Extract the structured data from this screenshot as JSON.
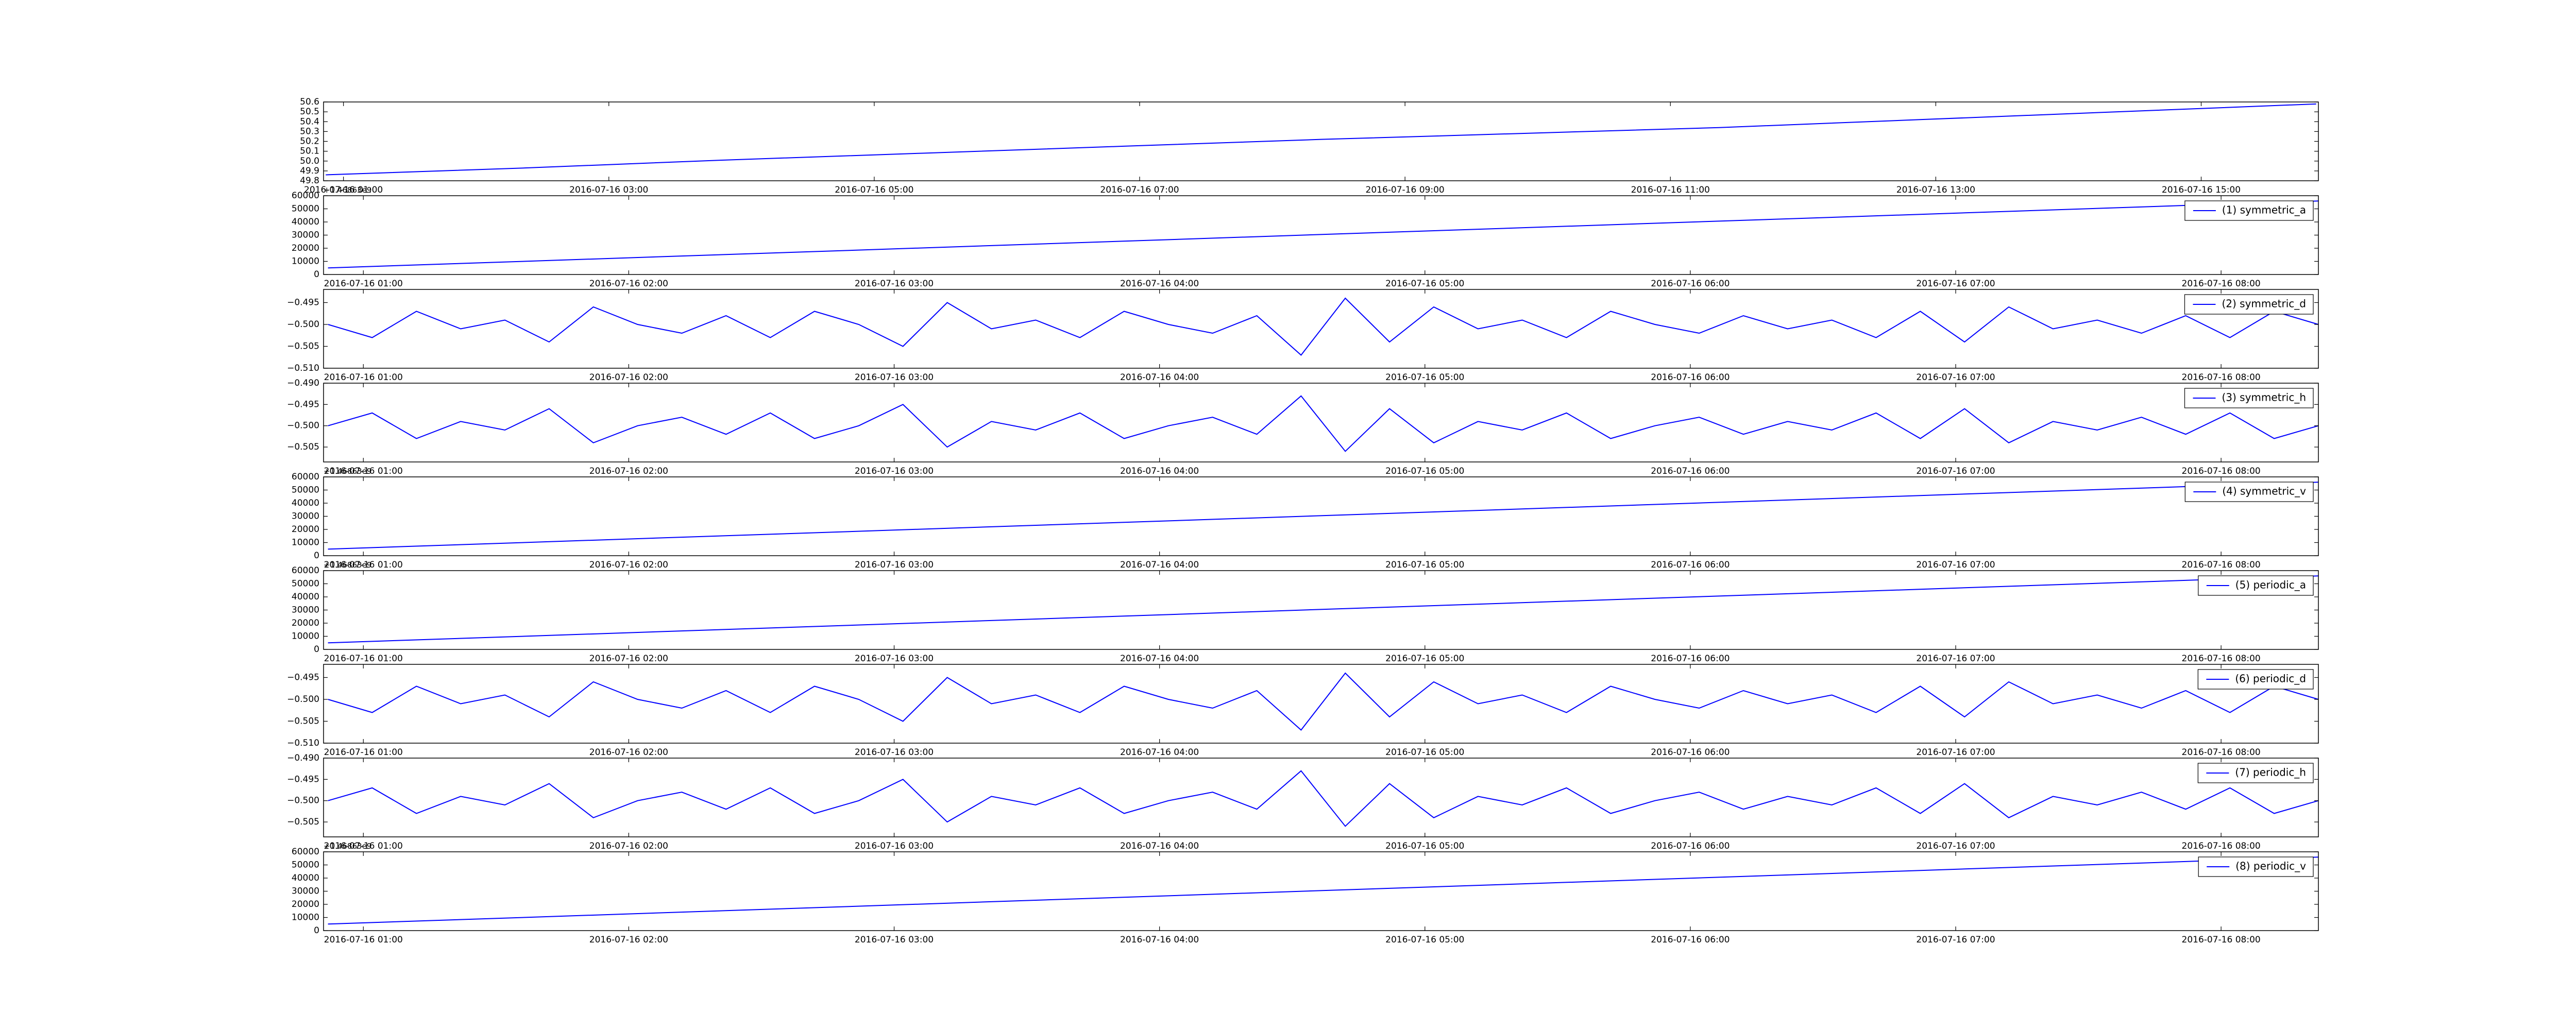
{
  "chart_data": [
    {
      "type": "line",
      "color": "#0000ff",
      "x": [
        "2016-07-16 00:52",
        "2016-07-16 02:22",
        "2016-07-16 03:52",
        "2016-07-16 05:22",
        "2016-07-16 06:52",
        "2016-07-16 08:22",
        "2016-07-16 09:52",
        "2016-07-16 11:22",
        "2016-07-16 12:52",
        "2016-07-16 14:22",
        "2016-07-16 15:52"
      ],
      "values": [
        49.86,
        49.93,
        50.01,
        50.08,
        50.15,
        50.22,
        50.28,
        50.34,
        50.42,
        50.5,
        50.58
      ],
      "xlim": [
        "2016-07-16 00:51",
        "2016-07-16 15:53"
      ],
      "xticks": [
        "2016-07-16 01:00",
        "2016-07-16 03:00",
        "2016-07-16 05:00",
        "2016-07-16 07:00",
        "2016-07-16 09:00",
        "2016-07-16 11:00",
        "2016-07-16 13:00",
        "2016-07-16 15:00"
      ],
      "ylim": [
        49.8,
        50.6
      ],
      "yticks": [
        49.8,
        49.9,
        {
          "value": 50,
          "label": "50.0"
        },
        50.1,
        50.2,
        50.3,
        50.4,
        50.5,
        50.6
      ]
    },
    {
      "type": "line",
      "offset_text": "+1.46863e9",
      "legend": "upper right",
      "x": [
        "2016-07-16 00:52",
        "2016-07-16 08:22"
      ],
      "series": [
        {
          "name": "(1) symmetric_a",
          "color": "#0000ff",
          "values": [
            5000,
            56000
          ]
        }
      ],
      "xlim": [
        "2016-07-16 00:51",
        "2016-07-16 08:22"
      ],
      "xticks": [
        "2016-07-16 01:00",
        "2016-07-16 02:00",
        "2016-07-16 03:00",
        "2016-07-16 04:00",
        "2016-07-16 05:00",
        "2016-07-16 06:00",
        "2016-07-16 07:00",
        "2016-07-16 08:00"
      ],
      "ylim": [
        0,
        60000
      ],
      "yticks": [
        0,
        10000,
        20000,
        30000,
        40000,
        50000,
        60000
      ]
    },
    {
      "type": "line",
      "legend": "upper right",
      "x": [
        "2016-07-16 00:52",
        "2016-07-16 01:02",
        "2016-07-16 01:12",
        "2016-07-16 01:22",
        "2016-07-16 01:32",
        "2016-07-16 01:42",
        "2016-07-16 01:52",
        "2016-07-16 02:02",
        "2016-07-16 02:12",
        "2016-07-16 02:22",
        "2016-07-16 02:32",
        "2016-07-16 02:42",
        "2016-07-16 02:52",
        "2016-07-16 03:02",
        "2016-07-16 03:12",
        "2016-07-16 03:22",
        "2016-07-16 03:32",
        "2016-07-16 03:42",
        "2016-07-16 03:52",
        "2016-07-16 04:02",
        "2016-07-16 04:12",
        "2016-07-16 04:22",
        "2016-07-16 04:32",
        "2016-07-16 04:42",
        "2016-07-16 04:52",
        "2016-07-16 05:02",
        "2016-07-16 05:12",
        "2016-07-16 05:22",
        "2016-07-16 05:32",
        "2016-07-16 05:42",
        "2016-07-16 05:52",
        "2016-07-16 06:02",
        "2016-07-16 06:12",
        "2016-07-16 06:22",
        "2016-07-16 06:32",
        "2016-07-16 06:42",
        "2016-07-16 06:52",
        "2016-07-16 07:02",
        "2016-07-16 07:12",
        "2016-07-16 07:22",
        "2016-07-16 07:32",
        "2016-07-16 07:42",
        "2016-07-16 07:52",
        "2016-07-16 08:02",
        "2016-07-16 08:12",
        "2016-07-16 08:22"
      ],
      "series": [
        {
          "name": "(2) symmetric_d",
          "color": "#0000ff",
          "values": [
            -0.5,
            -0.503,
            -0.497,
            -0.501,
            -0.499,
            -0.504,
            -0.496,
            -0.5,
            -0.502,
            -0.498,
            -0.503,
            -0.497,
            -0.5,
            -0.505,
            -0.495,
            -0.501,
            -0.499,
            -0.503,
            -0.497,
            -0.5,
            -0.502,
            -0.498,
            -0.507,
            -0.494,
            -0.504,
            -0.496,
            -0.501,
            -0.499,
            -0.503,
            -0.497,
            -0.5,
            -0.502,
            -0.498,
            -0.501,
            -0.499,
            -0.503,
            -0.497,
            -0.504,
            -0.496,
            -0.501,
            -0.499,
            -0.502,
            -0.498,
            -0.503,
            -0.497,
            -0.5
          ]
        }
      ],
      "xlim": [
        "2016-07-16 00:51",
        "2016-07-16 08:22"
      ],
      "xticks": [
        "2016-07-16 01:00",
        "2016-07-16 02:00",
        "2016-07-16 03:00",
        "2016-07-16 04:00",
        "2016-07-16 05:00",
        "2016-07-16 06:00",
        "2016-07-16 07:00",
        "2016-07-16 08:00"
      ],
      "ylim": [
        -0.51,
        -0.492
      ],
      "yticks": [
        {
          "value": -0.51,
          "label": "−0.510"
        },
        {
          "value": -0.505,
          "label": "−0.505"
        },
        {
          "value": -0.5,
          "label": "−0.500"
        },
        {
          "value": -0.495,
          "label": "−0.495"
        }
      ]
    },
    {
      "type": "line",
      "legend": "upper right",
      "x": [
        "2016-07-16 00:52",
        "2016-07-16 01:02",
        "2016-07-16 01:12",
        "2016-07-16 01:22",
        "2016-07-16 01:32",
        "2016-07-16 01:42",
        "2016-07-16 01:52",
        "2016-07-16 02:02",
        "2016-07-16 02:12",
        "2016-07-16 02:22",
        "2016-07-16 02:32",
        "2016-07-16 02:42",
        "2016-07-16 02:52",
        "2016-07-16 03:02",
        "2016-07-16 03:12",
        "2016-07-16 03:22",
        "2016-07-16 03:32",
        "2016-07-16 03:42",
        "2016-07-16 03:52",
        "2016-07-16 04:02",
        "2016-07-16 04:12",
        "2016-07-16 04:22",
        "2016-07-16 04:32",
        "2016-07-16 04:42",
        "2016-07-16 04:52",
        "2016-07-16 05:02",
        "2016-07-16 05:12",
        "2016-07-16 05:22",
        "2016-07-16 05:32",
        "2016-07-16 05:42",
        "2016-07-16 05:52",
        "2016-07-16 06:02",
        "2016-07-16 06:12",
        "2016-07-16 06:22",
        "2016-07-16 06:32",
        "2016-07-16 06:42",
        "2016-07-16 06:52",
        "2016-07-16 07:02",
        "2016-07-16 07:12",
        "2016-07-16 07:22",
        "2016-07-16 07:32",
        "2016-07-16 07:42",
        "2016-07-16 07:52",
        "2016-07-16 08:02",
        "2016-07-16 08:12",
        "2016-07-16 08:22"
      ],
      "series": [
        {
          "name": "(3) symmetric_h",
          "color": "#0000ff",
          "values": [
            -0.5,
            -0.497,
            -0.503,
            -0.499,
            -0.501,
            -0.496,
            -0.504,
            -0.5,
            -0.498,
            -0.502,
            -0.497,
            -0.503,
            -0.5,
            -0.495,
            -0.505,
            -0.499,
            -0.501,
            -0.497,
            -0.503,
            -0.5,
            -0.498,
            -0.502,
            -0.493,
            -0.506,
            -0.496,
            -0.504,
            -0.499,
            -0.501,
            -0.497,
            -0.503,
            -0.5,
            -0.498,
            -0.502,
            -0.499,
            -0.501,
            -0.497,
            -0.503,
            -0.496,
            -0.504,
            -0.499,
            -0.501,
            -0.498,
            -0.502,
            -0.497,
            -0.503,
            -0.5
          ]
        }
      ],
      "xlim": [
        "2016-07-16 00:51",
        "2016-07-16 08:22"
      ],
      "xticks": [
        "2016-07-16 01:00",
        "2016-07-16 02:00",
        "2016-07-16 03:00",
        "2016-07-16 04:00",
        "2016-07-16 05:00",
        "2016-07-16 06:00",
        "2016-07-16 07:00",
        "2016-07-16 08:00"
      ],
      "ylim": [
        -0.5085,
        -0.49
      ],
      "yticks": [
        {
          "value": -0.505,
          "label": "−0.505"
        },
        {
          "value": -0.5,
          "label": "−0.500"
        },
        {
          "value": -0.495,
          "label": "−0.495"
        },
        {
          "value": -0.49,
          "label": "−0.490"
        }
      ]
    },
    {
      "type": "line",
      "offset_text": "+1.46863e9",
      "legend": "upper right",
      "x": [
        "2016-07-16 00:52",
        "2016-07-16 08:22"
      ],
      "series": [
        {
          "name": "(4) symmetric_v",
          "color": "#0000ff",
          "values": [
            5000,
            56000
          ]
        }
      ],
      "xlim": [
        "2016-07-16 00:51",
        "2016-07-16 08:22"
      ],
      "xticks": [
        "2016-07-16 01:00",
        "2016-07-16 02:00",
        "2016-07-16 03:00",
        "2016-07-16 04:00",
        "2016-07-16 05:00",
        "2016-07-16 06:00",
        "2016-07-16 07:00",
        "2016-07-16 08:00"
      ],
      "ylim": [
        0,
        60000
      ],
      "yticks": [
        0,
        10000,
        20000,
        30000,
        40000,
        50000,
        60000
      ]
    },
    {
      "type": "line",
      "offset_text": "+1.46863e9",
      "legend": "upper right",
      "x": [
        "2016-07-16 00:52",
        "2016-07-16 08:22"
      ],
      "series": [
        {
          "name": "(5) periodic_a",
          "color": "#0000ff",
          "values": [
            5000,
            56000
          ]
        }
      ],
      "xlim": [
        "2016-07-16 00:51",
        "2016-07-16 08:22"
      ],
      "xticks": [
        "2016-07-16 01:00",
        "2016-07-16 02:00",
        "2016-07-16 03:00",
        "2016-07-16 04:00",
        "2016-07-16 05:00",
        "2016-07-16 06:00",
        "2016-07-16 07:00",
        "2016-07-16 08:00"
      ],
      "ylim": [
        0,
        60000
      ],
      "yticks": [
        0,
        10000,
        20000,
        30000,
        40000,
        50000,
        60000
      ]
    },
    {
      "type": "line",
      "legend": "upper right",
      "x": [
        "2016-07-16 00:52",
        "2016-07-16 01:02",
        "2016-07-16 01:12",
        "2016-07-16 01:22",
        "2016-07-16 01:32",
        "2016-07-16 01:42",
        "2016-07-16 01:52",
        "2016-07-16 02:02",
        "2016-07-16 02:12",
        "2016-07-16 02:22",
        "2016-07-16 02:32",
        "2016-07-16 02:42",
        "2016-07-16 02:52",
        "2016-07-16 03:02",
        "2016-07-16 03:12",
        "2016-07-16 03:22",
        "2016-07-16 03:32",
        "2016-07-16 03:42",
        "2016-07-16 03:52",
        "2016-07-16 04:02",
        "2016-07-16 04:12",
        "2016-07-16 04:22",
        "2016-07-16 04:32",
        "2016-07-16 04:42",
        "2016-07-16 04:52",
        "2016-07-16 05:02",
        "2016-07-16 05:12",
        "2016-07-16 05:22",
        "2016-07-16 05:32",
        "2016-07-16 05:42",
        "2016-07-16 05:52",
        "2016-07-16 06:02",
        "2016-07-16 06:12",
        "2016-07-16 06:22",
        "2016-07-16 06:32",
        "2016-07-16 06:42",
        "2016-07-16 06:52",
        "2016-07-16 07:02",
        "2016-07-16 07:12",
        "2016-07-16 07:22",
        "2016-07-16 07:32",
        "2016-07-16 07:42",
        "2016-07-16 07:52",
        "2016-07-16 08:02",
        "2016-07-16 08:12",
        "2016-07-16 08:22"
      ],
      "series": [
        {
          "name": "(6) periodic_d",
          "color": "#0000ff",
          "values": [
            -0.5,
            -0.503,
            -0.497,
            -0.501,
            -0.499,
            -0.504,
            -0.496,
            -0.5,
            -0.502,
            -0.498,
            -0.503,
            -0.497,
            -0.5,
            -0.505,
            -0.495,
            -0.501,
            -0.499,
            -0.503,
            -0.497,
            -0.5,
            -0.502,
            -0.498,
            -0.507,
            -0.494,
            -0.504,
            -0.496,
            -0.501,
            -0.499,
            -0.503,
            -0.497,
            -0.5,
            -0.502,
            -0.498,
            -0.501,
            -0.499,
            -0.503,
            -0.497,
            -0.504,
            -0.496,
            -0.501,
            -0.499,
            -0.502,
            -0.498,
            -0.503,
            -0.497,
            -0.5
          ]
        }
      ],
      "xlim": [
        "2016-07-16 00:51",
        "2016-07-16 08:22"
      ],
      "xticks": [
        "2016-07-16 01:00",
        "2016-07-16 02:00",
        "2016-07-16 03:00",
        "2016-07-16 04:00",
        "2016-07-16 05:00",
        "2016-07-16 06:00",
        "2016-07-16 07:00",
        "2016-07-16 08:00"
      ],
      "ylim": [
        -0.51,
        -0.492
      ],
      "yticks": [
        {
          "value": -0.51,
          "label": "−0.510"
        },
        {
          "value": -0.505,
          "label": "−0.505"
        },
        {
          "value": -0.5,
          "label": "−0.500"
        },
        {
          "value": -0.495,
          "label": "−0.495"
        }
      ]
    },
    {
      "type": "line",
      "legend": "upper right",
      "x": [
        "2016-07-16 00:52",
        "2016-07-16 01:02",
        "2016-07-16 01:12",
        "2016-07-16 01:22",
        "2016-07-16 01:32",
        "2016-07-16 01:42",
        "2016-07-16 01:52",
        "2016-07-16 02:02",
        "2016-07-16 02:12",
        "2016-07-16 02:22",
        "2016-07-16 02:32",
        "2016-07-16 02:42",
        "2016-07-16 02:52",
        "2016-07-16 03:02",
        "2016-07-16 03:12",
        "2016-07-16 03:22",
        "2016-07-16 03:32",
        "2016-07-16 03:42",
        "2016-07-16 03:52",
        "2016-07-16 04:02",
        "2016-07-16 04:12",
        "2016-07-16 04:22",
        "2016-07-16 04:32",
        "2016-07-16 04:42",
        "2016-07-16 04:52",
        "2016-07-16 05:02",
        "2016-07-16 05:12",
        "2016-07-16 05:22",
        "2016-07-16 05:32",
        "2016-07-16 05:42",
        "2016-07-16 05:52",
        "2016-07-16 06:02",
        "2016-07-16 06:12",
        "2016-07-16 06:22",
        "2016-07-16 06:32",
        "2016-07-16 06:42",
        "2016-07-16 06:52",
        "2016-07-16 07:02",
        "2016-07-16 07:12",
        "2016-07-16 07:22",
        "2016-07-16 07:32",
        "2016-07-16 07:42",
        "2016-07-16 07:52",
        "2016-07-16 08:02",
        "2016-07-16 08:12",
        "2016-07-16 08:22"
      ],
      "series": [
        {
          "name": "(7) periodic_h",
          "color": "#0000ff",
          "values": [
            -0.5,
            -0.497,
            -0.503,
            -0.499,
            -0.501,
            -0.496,
            -0.504,
            -0.5,
            -0.498,
            -0.502,
            -0.497,
            -0.503,
            -0.5,
            -0.495,
            -0.505,
            -0.499,
            -0.501,
            -0.497,
            -0.503,
            -0.5,
            -0.498,
            -0.502,
            -0.493,
            -0.506,
            -0.496,
            -0.504,
            -0.499,
            -0.501,
            -0.497,
            -0.503,
            -0.5,
            -0.498,
            -0.502,
            -0.499,
            -0.501,
            -0.497,
            -0.503,
            -0.496,
            -0.504,
            -0.499,
            -0.501,
            -0.498,
            -0.502,
            -0.497,
            -0.503,
            -0.5
          ]
        }
      ],
      "xlim": [
        "2016-07-16 00:51",
        "2016-07-16 08:22"
      ],
      "xticks": [
        "2016-07-16 01:00",
        "2016-07-16 02:00",
        "2016-07-16 03:00",
        "2016-07-16 04:00",
        "2016-07-16 05:00",
        "2016-07-16 06:00",
        "2016-07-16 07:00",
        "2016-07-16 08:00"
      ],
      "ylim": [
        -0.5085,
        -0.49
      ],
      "yticks": [
        {
          "value": -0.505,
          "label": "−0.505"
        },
        {
          "value": -0.5,
          "label": "−0.500"
        },
        {
          "value": -0.495,
          "label": "−0.495"
        },
        {
          "value": -0.49,
          "label": "−0.490"
        }
      ]
    },
    {
      "type": "line",
      "offset_text": "+1.46863e9",
      "legend": "upper right",
      "x": [
        "2016-07-16 00:52",
        "2016-07-16 08:22"
      ],
      "series": [
        {
          "name": "(8) periodic_v",
          "color": "#0000ff",
          "values": [
            5000,
            56000
          ]
        }
      ],
      "xlim": [
        "2016-07-16 00:51",
        "2016-07-16 08:22"
      ],
      "xticks": [
        "2016-07-16 01:00",
        "2016-07-16 02:00",
        "2016-07-16 03:00",
        "2016-07-16 04:00",
        "2016-07-16 05:00",
        "2016-07-16 06:00",
        "2016-07-16 07:00",
        "2016-07-16 08:00"
      ],
      "ylim": [
        0,
        60000
      ],
      "yticks": [
        0,
        10000,
        20000,
        30000,
        40000,
        50000,
        60000
      ]
    }
  ]
}
